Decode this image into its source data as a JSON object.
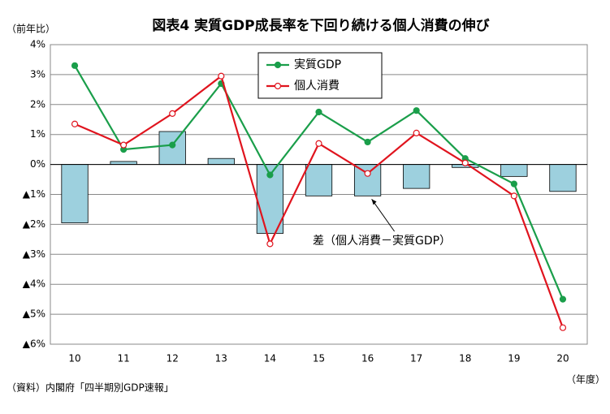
{
  "chart_data": {
    "type": "bar-line",
    "title": "図表4 実質GDP成長率を下回り続ける個人消費の伸び",
    "y_unit": "（前年比）",
    "x_unit": "（年度）",
    "source": "（資料）内閣府「四半期別GDP速報」",
    "categories": [
      "10",
      "11",
      "12",
      "13",
      "14",
      "15",
      "16",
      "17",
      "18",
      "19",
      "20"
    ],
    "series": [
      {
        "name": "差（個人消費－実質GDP）",
        "type": "bar",
        "color": "#9dd0de",
        "values": [
          -1.95,
          0.1,
          1.1,
          0.2,
          -2.3,
          -1.05,
          -1.05,
          -0.8,
          -0.1,
          -0.4,
          -0.9
        ]
      },
      {
        "name": "実質GDP",
        "type": "line",
        "color": "#1a9e4a",
        "marker_fill": "#1a9e4a",
        "values": [
          3.3,
          0.5,
          0.65,
          2.7,
          -0.35,
          1.75,
          0.75,
          1.8,
          0.2,
          -0.65,
          -4.5
        ]
      },
      {
        "name": "個人消費",
        "type": "line",
        "color": "#e0141e",
        "marker_fill": "#ffffff",
        "values": [
          1.35,
          0.65,
          1.7,
          2.95,
          -2.65,
          0.7,
          -0.3,
          1.05,
          0.05,
          -1.05,
          -5.45
        ]
      }
    ],
    "ylim": [
      -6,
      4
    ],
    "yticks": [
      {
        "value": 4,
        "label": "4%"
      },
      {
        "value": 3,
        "label": "3%"
      },
      {
        "value": 2,
        "label": "2%"
      },
      {
        "value": 1,
        "label": "1%"
      },
      {
        "value": 0,
        "label": "0%"
      },
      {
        "value": -1,
        "label": "▲1%"
      },
      {
        "value": -2,
        "label": "▲2%"
      },
      {
        "value": -3,
        "label": "▲3%"
      },
      {
        "value": -4,
        "label": "▲4%"
      },
      {
        "value": -5,
        "label": "▲5%"
      },
      {
        "value": -6,
        "label": "▲6%"
      }
    ],
    "grid": true
  }
}
